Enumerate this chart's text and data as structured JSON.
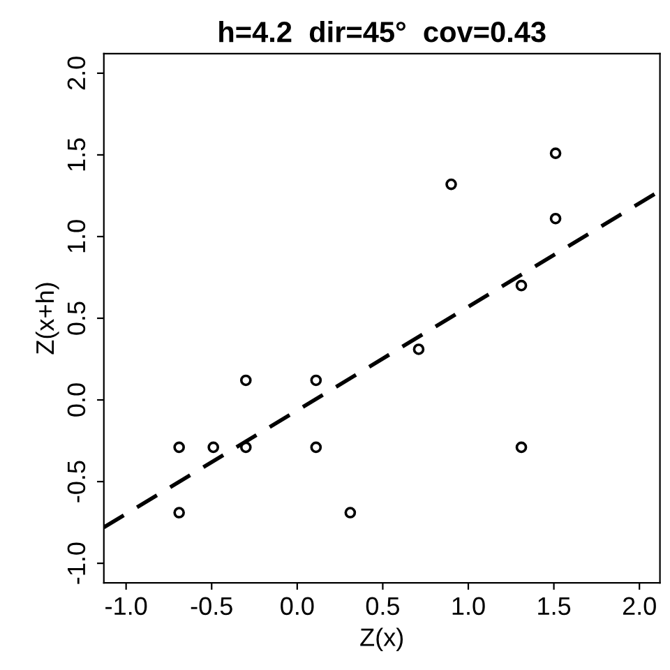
{
  "chart_data": {
    "type": "scatter",
    "title": "h=4.2  dir=45°  cov=0.43",
    "xlabel": "Z(x)",
    "ylabel": "Z(x+h)",
    "x": [
      -0.69,
      -0.69,
      -0.49,
      -0.3,
      -0.3,
      0.11,
      0.11,
      0.31,
      0.71,
      0.9,
      1.31,
      1.31,
      1.51,
      1.51
    ],
    "series": [
      {
        "color": "#000000",
        "marker": "circle",
        "values": [
          -0.29,
          -0.69,
          -0.29,
          0.12,
          -0.29,
          0.12,
          -0.29,
          -0.69,
          0.31,
          1.32,
          0.7,
          -0.29,
          1.51,
          1.11
        ]
      },
      {
        "type": "line",
        "color": "#000000",
        "line_style": "dashed",
        "marker": "none",
        "x": [
          -1.13,
          2.12
        ],
        "values": [
          -0.78,
          1.28
        ]
      }
    ],
    "xlim": [
      -1.13,
      2.12
    ],
    "ylim": [
      -1.12,
      2.12
    ],
    "xticks": [
      {
        "value": -1.0,
        "label": "-1.0"
      },
      {
        "value": -0.5,
        "label": "-0.5"
      },
      {
        "value": 0.0,
        "label": "0.0"
      },
      {
        "value": 0.5,
        "label": "0.5"
      },
      {
        "value": 1.0,
        "label": "1.0"
      },
      {
        "value": 1.5,
        "label": "1.5"
      },
      {
        "value": 2.0,
        "label": "2.0"
      }
    ],
    "yticks": [
      {
        "value": -1.0,
        "label": "-1.0"
      },
      {
        "value": -0.5,
        "label": "-0.5"
      },
      {
        "value": 0.0,
        "label": "0.0"
      },
      {
        "value": 0.5,
        "label": "0.5"
      },
      {
        "value": 1.0,
        "label": "1.0"
      },
      {
        "value": 1.5,
        "label": "1.5"
      },
      {
        "value": 2.0,
        "label": "2.0"
      }
    ],
    "grid": false,
    "legend": false
  }
}
